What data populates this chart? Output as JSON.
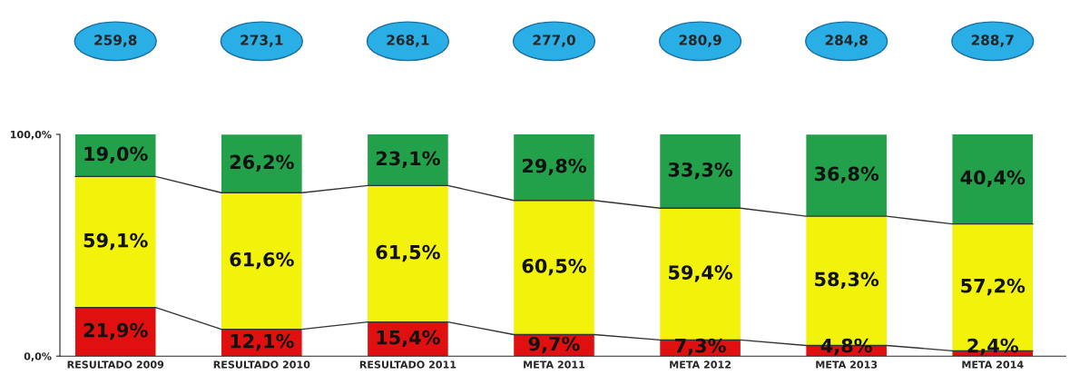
{
  "chart_data": {
    "type": "bar",
    "stacked": true,
    "categories": [
      "RESULTADO 2009",
      "RESULTADO 2010",
      "RESULTADO 2011",
      "META 2011",
      "META 2012",
      "META 2013",
      "META 2014"
    ],
    "series": [
      {
        "color": "#e01010",
        "values": [
          21.9,
          12.1,
          15.4,
          9.7,
          7.3,
          4.8,
          2.4
        ],
        "value_labels": [
          "21,9%",
          "12,1%",
          "15,4%",
          "9,7%",
          "7,3%",
          "4,8%",
          "2,4%"
        ]
      },
      {
        "color": "#f2f20a",
        "values": [
          59.1,
          61.6,
          61.5,
          60.5,
          59.4,
          58.3,
          57.2
        ],
        "value_labels": [
          "59,1%",
          "61,6%",
          "61,5%",
          "60,5%",
          "59,4%",
          "58,3%",
          "57,2%"
        ]
      },
      {
        "color": "#22a04a",
        "values": [
          19.0,
          26.2,
          23.1,
          29.8,
          33.3,
          36.8,
          40.4
        ],
        "value_labels": [
          "19,0%",
          "26,2%",
          "23,1%",
          "29,8%",
          "33,3%",
          "36,8%",
          "40,4%"
        ]
      }
    ],
    "annotations": [
      "259,8",
      "273,1",
      "268,1",
      "277,0",
      "280,9",
      "284,8",
      "288,7"
    ],
    "ylim": [
      0,
      100
    ],
    "yticks": [
      {
        "value": 0,
        "label": "0,0%"
      },
      {
        "value": 100,
        "label": "100,0%"
      }
    ],
    "grid": false
  }
}
